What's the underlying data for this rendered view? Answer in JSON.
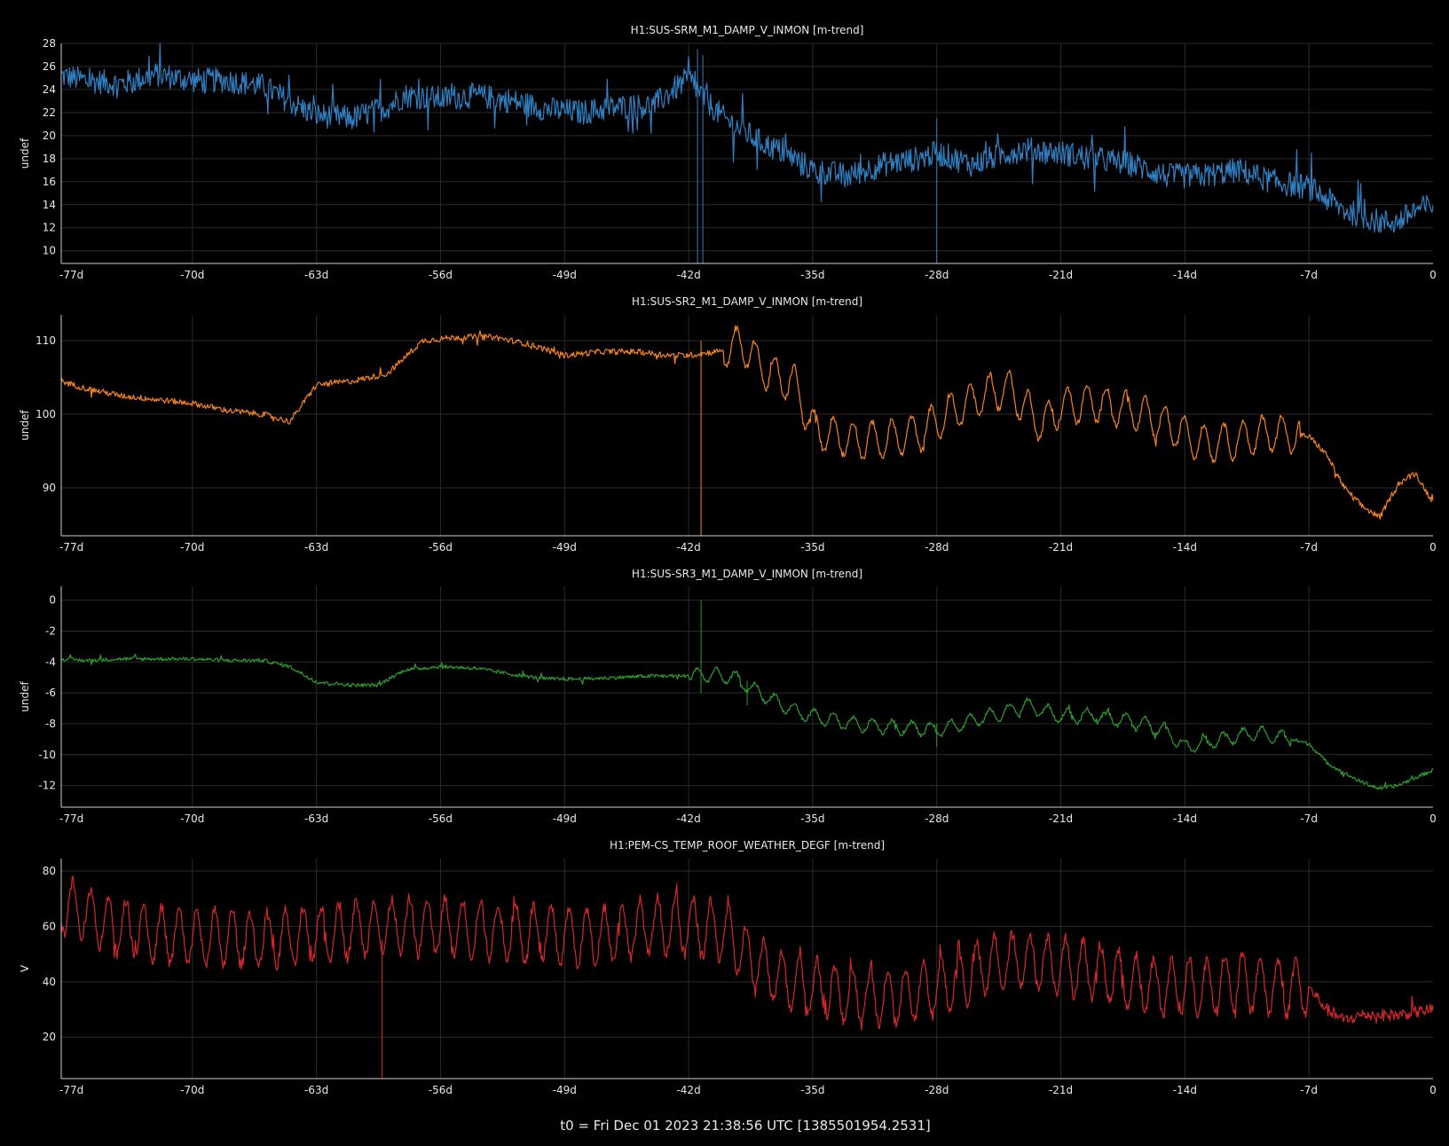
{
  "footer": "t0 = Fri Dec 01 2023 21:38:56 UTC [1385501954.2531]",
  "x_ticks": [
    "-77d",
    "-70d",
    "-63d",
    "-56d",
    "-49d",
    "-42d",
    "-35d",
    "-28d",
    "-21d",
    "-14d",
    "-7d",
    "0"
  ],
  "chart_data": [
    {
      "type": "line",
      "title": "H1:SUS-SRM_M1_DAMP_V_INMON [m-trend]",
      "ylabel": "undef",
      "color": "#2f7fc1",
      "xlim": [
        -77.4,
        0
      ],
      "ylim": [
        8.9,
        28
      ],
      "yticks": [
        10,
        12,
        14,
        16,
        18,
        20,
        22,
        24,
        26,
        28
      ],
      "noise": 1.1,
      "x": [
        -77.4,
        -76,
        -74,
        -72,
        -70,
        -68,
        -66,
        -64,
        -63,
        -61,
        -59,
        -58,
        -56,
        -54,
        -52,
        -50,
        -48,
        -46,
        -44,
        -42,
        -41,
        -40,
        -38,
        -36,
        -35,
        -33,
        -31,
        -29,
        -28,
        -26,
        -24,
        -23,
        -21,
        -19,
        -17,
        -15,
        -13,
        -11,
        -9,
        -7,
        -6,
        -5,
        -4,
        -3,
        -2,
        -1,
        0
      ],
      "y": [
        25.2,
        24.8,
        24.5,
        25.3,
        24.8,
        24.8,
        24.3,
        22.5,
        21.8,
        21.5,
        22.5,
        23.5,
        23.2,
        23.5,
        23.0,
        22.3,
        22.0,
        22.5,
        22.6,
        25.0,
        23.0,
        21.5,
        19.5,
        18.0,
        17.0,
        16.5,
        17.5,
        18.0,
        18.5,
        17.5,
        18.5,
        18.8,
        18.5,
        18.0,
        17.5,
        16.5,
        16.5,
        17.0,
        16.0,
        15.5,
        14.5,
        13.5,
        13.0,
        12.5,
        12.5,
        13.5,
        14.0
      ],
      "spikes": [
        {
          "x": -41.5,
          "low": 8.9,
          "high": 27.5
        },
        {
          "x": -41.2,
          "low": 8.9,
          "high": 27.0
        },
        {
          "x": -28.0,
          "low": 8.9,
          "high": 21.5
        }
      ]
    },
    {
      "type": "line",
      "title": "H1:SUS-SR2_M1_DAMP_V_INMON [m-trend]",
      "ylabel": "undef",
      "color": "#f5821f",
      "xlim": [
        -77.4,
        0
      ],
      "ylim": [
        83.5,
        113.5
      ],
      "yticks": [
        90,
        100,
        110
      ],
      "noise": 0.4,
      "x": [
        -77.4,
        -76,
        -74,
        -72,
        -70,
        -68,
        -66,
        -64.5,
        -63,
        -61,
        -59,
        -57,
        -55,
        -53,
        -51,
        -49,
        -47,
        -45,
        -43,
        -42,
        -40.5,
        -39,
        -37.5,
        -36,
        -35,
        -33,
        -31,
        -29,
        -27,
        -25,
        -24,
        -22,
        -21,
        -19,
        -17,
        -15,
        -13,
        -11,
        -9,
        -7,
        -6,
        -5,
        -4,
        -3,
        -2,
        -1,
        0
      ],
      "y": [
        104.5,
        103.5,
        102.5,
        102.0,
        101.5,
        100.5,
        100.0,
        99.0,
        104.0,
        104.5,
        105.5,
        110.0,
        110.5,
        110.5,
        109.5,
        108.0,
        108.5,
        108.5,
        108.0,
        108.0,
        108.5,
        109.5,
        105.5,
        104.0,
        98.0,
        96.5,
        96.5,
        97.5,
        100.5,
        103.0,
        103.5,
        98.5,
        101.0,
        101.5,
        100.5,
        98.5,
        96.0,
        96.5,
        97.5,
        97.0,
        94.5,
        90.0,
        87.5,
        86.0,
        90.5,
        92.0,
        88.0
      ],
      "osc": [
        {
          "from": -40,
          "to": -7.5,
          "amp": 2.5,
          "period": 1.1
        }
      ],
      "spikes": [
        {
          "x": -41.3,
          "low": 83.5,
          "high": 110.0
        }
      ]
    },
    {
      "type": "line",
      "title": "H1:SUS-SR3_M1_DAMP_V_INMON [m-trend]",
      "ylabel": "undef",
      "color": "#2ca02c",
      "xlim": [
        -77.4,
        0
      ],
      "ylim": [
        -13.4,
        0.9
      ],
      "yticks": [
        0,
        -2,
        -4,
        -6,
        -8,
        -10,
        -12
      ],
      "noise": 0.12,
      "x": [
        -77.4,
        -76,
        -74,
        -72,
        -70,
        -68,
        -66,
        -64.5,
        -63,
        -61,
        -59.5,
        -58,
        -56,
        -54,
        -52,
        -50,
        -48,
        -46,
        -44,
        -42,
        -41,
        -39.5,
        -38,
        -36,
        -35,
        -33,
        -31,
        -29,
        -28,
        -26,
        -24,
        -23,
        -21,
        -19,
        -17,
        -15,
        -14,
        -12,
        -10,
        -8,
        -7,
        -6,
        -5,
        -4,
        -3,
        -2,
        -1,
        0
      ],
      "y": [
        -3.8,
        -3.9,
        -3.8,
        -3.8,
        -3.8,
        -3.9,
        -3.9,
        -4.3,
        -5.3,
        -5.5,
        -5.5,
        -4.5,
        -4.3,
        -4.4,
        -4.8,
        -5.1,
        -5.1,
        -5.0,
        -4.9,
        -4.9,
        -4.8,
        -5.0,
        -6.0,
        -7.2,
        -7.5,
        -8.0,
        -8.2,
        -8.3,
        -8.4,
        -7.8,
        -7.2,
        -6.8,
        -7.5,
        -7.5,
        -7.8,
        -8.5,
        -9.5,
        -9.0,
        -8.6,
        -9.0,
        -9.3,
        -10.5,
        -11.2,
        -11.8,
        -12.2,
        -12.0,
        -11.5,
        -11.0
      ],
      "osc": [
        {
          "from": -42,
          "to": -8,
          "amp": 0.45,
          "period": 1.1
        }
      ],
      "spikes": [
        {
          "x": -41.3,
          "low": -6.0,
          "high": 0.0
        },
        {
          "x": -38.7,
          "low": -6.8,
          "high": -5.2
        },
        {
          "x": -28.0,
          "low": -9.5,
          "high": -8.0
        }
      ]
    },
    {
      "type": "line",
      "title": "H1:PEM-CS_TEMP_ROOF_WEATHER_DEGF [m-trend]",
      "ylabel": "V",
      "color": "#d62728",
      "xlim": [
        -77.4,
        0
      ],
      "ylim": [
        5,
        84.5
      ],
      "yticks": [
        20,
        40,
        60,
        80
      ],
      "noise": 2.2,
      "x": [
        -77.4,
        -76,
        -74,
        -72,
        -70,
        -68,
        -66,
        -64,
        -62,
        -60,
        -58,
        -56,
        -54,
        -52,
        -50,
        -48,
        -46,
        -44,
        -42,
        -40,
        -38.5,
        -37,
        -35,
        -33,
        -31,
        -29,
        -27,
        -25,
        -23,
        -21,
        -19,
        -17,
        -15,
        -13,
        -11,
        -9,
        -7,
        -6,
        -5,
        -4,
        -3,
        -2,
        -1,
        0
      ],
      "y": [
        68,
        64,
        60,
        57,
        56,
        56,
        55,
        56,
        58,
        60,
        60,
        60,
        59,
        58,
        57,
        56,
        58,
        60,
        60,
        58,
        48,
        42,
        38,
        35,
        34,
        36,
        40,
        46,
        48,
        46,
        44,
        40,
        38,
        38,
        40,
        38,
        38,
        30,
        26,
        28,
        28,
        28,
        29,
        30
      ],
      "osc": [
        {
          "from": -77.4,
          "to": -7,
          "amp": 10,
          "period": 1.0
        }
      ],
      "spikes": [
        {
          "x": -59.3,
          "low": 5,
          "high": 55
        }
      ]
    }
  ]
}
